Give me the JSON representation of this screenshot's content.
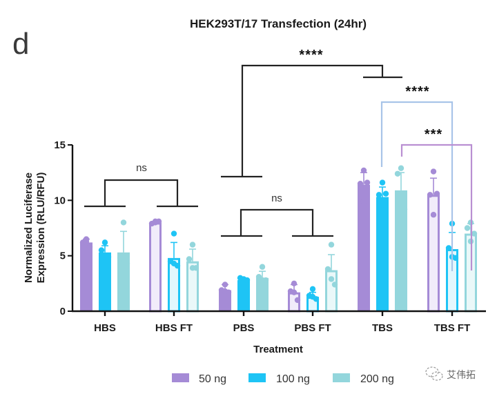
{
  "panel_label": "d",
  "watermark": "艾伟拓",
  "chart_data": {
    "type": "bar",
    "title": "HEK293T/17 Transfection (24hr)",
    "xlabel": "Treatment",
    "ylabel": [
      "Normalized Luciferase",
      "Expression (RLU/RFU)"
    ],
    "ylim": [
      0,
      15
    ],
    "yticks": [
      0,
      5,
      10,
      15
    ],
    "categories": [
      "HBS",
      "HBS FT",
      "PBS",
      "PBS FT",
      "TBS",
      "TBS FT"
    ],
    "filled": [
      true,
      false,
      true,
      false,
      true,
      false
    ],
    "legend_position": "bottom",
    "series": [
      {
        "name": "50 ng",
        "color": "#a58bd6",
        "values": [
          6.2,
          8.0,
          1.9,
          1.7,
          11.4,
          10.5
        ],
        "err": [
          0.3,
          0.1,
          0.5,
          0.7,
          1.1,
          1.5
        ],
        "points": [
          [
            6.5,
            6.2,
            5.8,
            6.3
          ],
          [
            8.1,
            7.9,
            8.1,
            8.0
          ],
          [
            2.4,
            1.9,
            1.7,
            1.8
          ],
          [
            2.5,
            1.8,
            1.0,
            1.7
          ],
          [
            12.7,
            11.5,
            11.6,
            9.9
          ],
          [
            12.6,
            10.5,
            10.6,
            8.7
          ]
        ]
      },
      {
        "name": "100 ng",
        "color": "#1ec4f5",
        "values": [
          5.3,
          4.8,
          2.8,
          1.3,
          10.3,
          5.6
        ],
        "err": [
          0.6,
          1.4,
          0.2,
          0.4,
          0.9,
          1.5
        ],
        "points": [
          [
            6.2,
            5.5,
            4.9,
            4.9
          ],
          [
            7.0,
            4.5,
            4.1,
            4.3
          ],
          [
            2.9,
            3.0,
            2.8,
            2.2
          ],
          [
            2.0,
            1.4,
            1.1,
            1.3
          ],
          [
            11.6,
            10.5,
            10.6,
            9.6
          ],
          [
            7.9,
            5.7,
            4.8,
            4.9
          ]
        ]
      },
      {
        "name": "200 ng",
        "color": "#93d6dc",
        "values": [
          5.3,
          4.5,
          3.0,
          3.7,
          10.9,
          7.0
        ],
        "err": [
          1.9,
          1.1,
          0.6,
          1.4,
          1.6,
          0.9
        ],
        "points": [
          [
            8.0,
            4.8,
            4.3,
            4.3
          ],
          [
            6.0,
            4.7,
            3.9,
            3.9
          ],
          [
            4.0,
            3.1,
            2.8,
            2.8
          ],
          [
            6.0,
            3.8,
            2.4,
            2.9
          ],
          [
            12.9,
            12.4,
            9.2,
            9.3
          ],
          [
            8.0,
            7.5,
            7.0,
            6.3
          ]
        ]
      }
    ],
    "annotations": [
      {
        "label": "ns",
        "groups": [
          "HBS",
          "HBS FT"
        ]
      },
      {
        "label": "ns",
        "groups": [
          "PBS",
          "PBS FT"
        ]
      },
      {
        "label": "****",
        "groups": [
          "PBS",
          "TBS"
        ]
      },
      {
        "label": "****",
        "groups": [
          "TBS 100 ng",
          "TBS FT 100 ng"
        ]
      },
      {
        "label": "***",
        "groups": [
          "TBS 200 ng",
          "TBS FT 200 ng"
        ]
      }
    ]
  }
}
